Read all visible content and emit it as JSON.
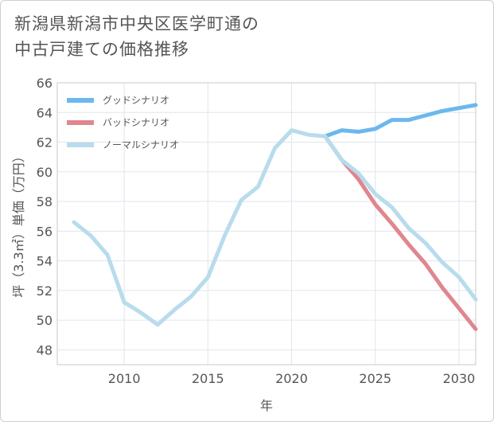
{
  "chart_data": {
    "type": "line",
    "title_line1": "新潟県新潟市中央区医学町通の",
    "title_line2": "中古戸建ての価格推移",
    "xlabel": "年",
    "ylabel": "坪（3.3㎡）単価（万円）",
    "xlim": [
      2006,
      2031
    ],
    "ylim": [
      47,
      66
    ],
    "xticks": [
      2010,
      2015,
      2020,
      2025,
      2030
    ],
    "yticks": [
      48,
      50,
      52,
      54,
      56,
      58,
      60,
      62,
      64,
      66
    ],
    "series": [
      {
        "name": "グッドシナリオ",
        "color": "#6cb8ee",
        "x": [
          2022,
          2023,
          2024,
          2025,
          2026,
          2027,
          2028,
          2029,
          2030,
          2031
        ],
        "values": [
          62.4,
          62.8,
          62.7,
          62.9,
          63.5,
          63.5,
          63.8,
          64.1,
          64.3,
          64.5
        ]
      },
      {
        "name": "バッドシナリオ",
        "color": "#e0868e",
        "x": [
          2022,
          2023,
          2024,
          2025,
          2026,
          2027,
          2028,
          2029,
          2030,
          2031
        ],
        "values": [
          62.4,
          60.8,
          59.5,
          57.8,
          56.5,
          55.1,
          53.8,
          52.2,
          50.8,
          49.4
        ]
      },
      {
        "name": "ノーマルシナリオ",
        "color": "#b8dcec",
        "x": [
          2007,
          2008,
          2009,
          2010,
          2011,
          2012,
          2013,
          2014,
          2015,
          2016,
          2017,
          2018,
          2019,
          2020,
          2021,
          2022,
          2023,
          2024,
          2025,
          2026,
          2027,
          2028,
          2029,
          2030,
          2031
        ],
        "values": [
          56.6,
          55.7,
          54.4,
          51.2,
          50.5,
          49.7,
          50.7,
          51.6,
          52.9,
          55.7,
          58.1,
          59.0,
          61.6,
          62.8,
          62.5,
          62.4,
          60.8,
          59.9,
          58.5,
          57.6,
          56.2,
          55.2,
          53.9,
          52.9,
          51.4
        ]
      }
    ]
  }
}
